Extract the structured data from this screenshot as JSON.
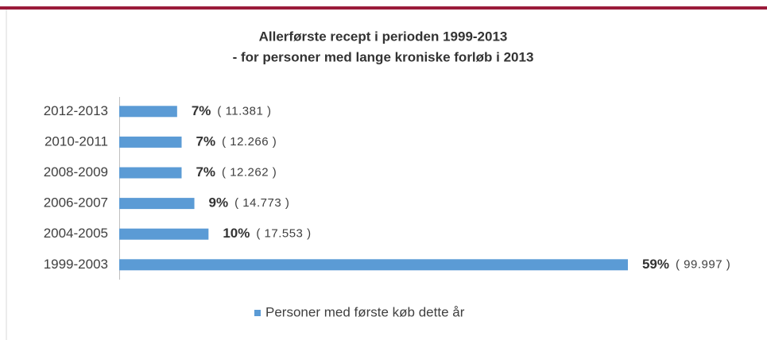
{
  "chart_data": {
    "type": "barh",
    "title": "Allerførste recept i perioden 1999-2013",
    "subtitle": "- for personer med lange kroniske forløb i 2013",
    "categories": [
      "2012-2013",
      "2010-2011",
      "2008-2009",
      "2006-2007",
      "2004-2005",
      "1999-2003"
    ],
    "series": [
      {
        "name": "Personer med første køb dette år",
        "color": "#5b9bd5",
        "values": [
          11381,
          12266,
          12262,
          14773,
          17553,
          99997
        ],
        "value_labels": [
          "( 11.381 )",
          "( 12.266 )",
          "( 12.262 )",
          "( 14.773 )",
          "( 17.553 )",
          "( 99.997 )"
        ],
        "percents": [
          7,
          7,
          7,
          9,
          10,
          59
        ],
        "percent_labels": [
          "7%",
          "7%",
          "7%",
          "9%",
          "10%",
          "59%"
        ]
      }
    ],
    "xlim": [
      0,
      100000
    ],
    "legend": "bottom"
  }
}
